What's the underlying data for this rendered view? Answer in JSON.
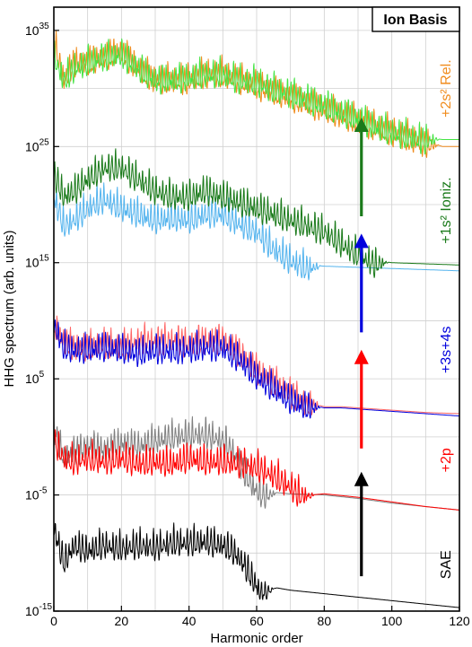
{
  "chart_data": {
    "type": "line",
    "title": "Ion Basis",
    "xlabel": "Harmonic order",
    "ylabel": "HHG spectrum (arb. units)",
    "xlim": [
      0,
      120
    ],
    "ylim_exponent": [
      -15,
      37
    ],
    "log_y": true,
    "grid": true,
    "x_ticks": [
      "0",
      "20",
      "40",
      "60",
      "80",
      "100",
      "120"
    ],
    "y_ticks": [
      {
        "base": "10",
        "exp": "35",
        "value": 35
      },
      {
        "base": "10",
        "exp": "25",
        "value": 25
      },
      {
        "base": "10",
        "exp": "15",
        "value": 15
      },
      {
        "base": "10",
        "exp": "5",
        "value": 5
      },
      {
        "base": "10",
        "exp": "-5",
        "value": -5
      },
      {
        "base": "10",
        "exp": "-15",
        "value": -15
      }
    ],
    "panel_labels": [
      {
        "text": "SAE",
        "color": "#000000",
        "y": -11
      },
      {
        "text": "+2p",
        "color": "#ff0000",
        "y": -2
      },
      {
        "text": "+3s+4s",
        "color": "#0000dd",
        "y": 7.5
      },
      {
        "text": "+1s² Ioniz.",
        "color": "#1a7a1a",
        "y": 19.5
      },
      {
        "text": "+2s² Rel.",
        "color": "#f08c1e",
        "y": 30
      }
    ],
    "arrows": [
      {
        "x": 91,
        "from": -12,
        "to": -3,
        "color": "#000000"
      },
      {
        "x": 91,
        "from": -1,
        "to": 7.5,
        "color": "#ff0000"
      },
      {
        "x": 91,
        "from": 9,
        "to": 17.5,
        "color": "#0000dd"
      },
      {
        "x": 91,
        "from": 19,
        "to": 27.5,
        "color": "#1a7a1a"
      }
    ],
    "series": [
      {
        "color": "#000000",
        "values": [
          [
            0,
            -7.5
          ],
          [
            3,
            -10.5
          ],
          [
            6,
            -9
          ],
          [
            10,
            -9.5
          ],
          [
            15,
            -9
          ],
          [
            20,
            -9.3
          ],
          [
            25,
            -9
          ],
          [
            30,
            -9.2
          ],
          [
            35,
            -8.8
          ],
          [
            40,
            -8.8
          ],
          [
            45,
            -8.7
          ],
          [
            50,
            -9
          ],
          [
            53,
            -9.5
          ],
          [
            56,
            -10.5
          ],
          [
            59,
            -12
          ],
          [
            61,
            -13
          ],
          [
            63,
            -13.2
          ],
          [
            66,
            -13
          ],
          [
            70,
            -13.2
          ],
          [
            80,
            -13.5
          ],
          [
            90,
            -13.8
          ],
          [
            100,
            -14.1
          ],
          [
            110,
            -14.4
          ],
          [
            120,
            -14.7
          ]
        ]
      },
      {
        "color": "#808080",
        "values": [
          [
            0,
            1
          ],
          [
            3,
            -1.5
          ],
          [
            6,
            -1
          ],
          [
            10,
            -0.5
          ],
          [
            15,
            -0.8
          ],
          [
            20,
            -0.2
          ],
          [
            25,
            -0.5
          ],
          [
            30,
            0
          ],
          [
            35,
            0.3
          ],
          [
            40,
            0.5
          ],
          [
            45,
            0.5
          ],
          [
            50,
            0
          ],
          [
            53,
            -1
          ],
          [
            56,
            -2.5
          ],
          [
            59,
            -4
          ],
          [
            62,
            -4.8
          ],
          [
            66,
            -4.8
          ],
          [
            70,
            -4.9
          ],
          [
            80,
            -5
          ],
          [
            90,
            -5.3
          ],
          [
            100,
            -5.7
          ],
          [
            110,
            -6
          ],
          [
            120,
            -6.3
          ]
        ]
      },
      {
        "color": "#ff0000",
        "values": [
          [
            0,
            0
          ],
          [
            3,
            -1.5
          ],
          [
            6,
            -1.8
          ],
          [
            10,
            -1.5
          ],
          [
            15,
            -1.8
          ],
          [
            20,
            -1.5
          ],
          [
            25,
            -2
          ],
          [
            30,
            -1.8
          ],
          [
            35,
            -2
          ],
          [
            40,
            -1.5
          ],
          [
            45,
            -1.8
          ],
          [
            50,
            -1.8
          ],
          [
            55,
            -2
          ],
          [
            60,
            -2.3
          ],
          [
            65,
            -3
          ],
          [
            70,
            -4
          ],
          [
            73,
            -4.7
          ],
          [
            76,
            -5
          ],
          [
            80,
            -4.9
          ],
          [
            90,
            -5.2
          ],
          [
            100,
            -5.6
          ],
          [
            110,
            -6
          ],
          [
            120,
            -6.3
          ]
        ]
      },
      {
        "color": "#ff6464",
        "values": [
          [
            0,
            10
          ],
          [
            3,
            8.5
          ],
          [
            6,
            8
          ],
          [
            10,
            8
          ],
          [
            15,
            8.3
          ],
          [
            20,
            8
          ],
          [
            25,
            8.5
          ],
          [
            30,
            8.5
          ],
          [
            35,
            8.6
          ],
          [
            40,
            8.3
          ],
          [
            45,
            8.6
          ],
          [
            50,
            8.6
          ],
          [
            55,
            7.5
          ],
          [
            60,
            6
          ],
          [
            65,
            5
          ],
          [
            70,
            4
          ],
          [
            75,
            3
          ],
          [
            80,
            2.6
          ],
          [
            85,
            2.6
          ],
          [
            90,
            2.5
          ],
          [
            100,
            2.3
          ],
          [
            110,
            2.1
          ],
          [
            120,
            2
          ]
        ]
      },
      {
        "color": "#0000dd",
        "values": [
          [
            0,
            10
          ],
          [
            3,
            8
          ],
          [
            6,
            7.8
          ],
          [
            10,
            7.8
          ],
          [
            15,
            8
          ],
          [
            20,
            7.8
          ],
          [
            25,
            7.5
          ],
          [
            30,
            7.8
          ],
          [
            35,
            7.7
          ],
          [
            40,
            7.8
          ],
          [
            45,
            8
          ],
          [
            50,
            8
          ],
          [
            55,
            7
          ],
          [
            60,
            5.5
          ],
          [
            65,
            4.5
          ],
          [
            70,
            3.5
          ],
          [
            75,
            2.8
          ],
          [
            80,
            2.5
          ],
          [
            85,
            2.5
          ],
          [
            90,
            2.4
          ],
          [
            100,
            2.2
          ],
          [
            110,
            2
          ],
          [
            120,
            1.8
          ]
        ]
      },
      {
        "color": "#55b4ee",
        "values": [
          [
            0,
            21
          ],
          [
            3,
            18.5
          ],
          [
            6,
            19
          ],
          [
            10,
            20
          ],
          [
            15,
            20.8
          ],
          [
            20,
            20
          ],
          [
            25,
            19.5
          ],
          [
            30,
            19
          ],
          [
            35,
            19.2
          ],
          [
            40,
            19
          ],
          [
            45,
            19.5
          ],
          [
            50,
            19.5
          ],
          [
            53,
            19
          ],
          [
            56,
            18.5
          ],
          [
            60,
            18
          ],
          [
            65,
            16.5
          ],
          [
            70,
            15.5
          ],
          [
            75,
            14.8
          ],
          [
            80,
            14.7
          ],
          [
            90,
            14.6
          ],
          [
            100,
            14.5
          ],
          [
            110,
            14.4
          ],
          [
            120,
            14.3
          ]
        ]
      },
      {
        "color": "#1a7a1a",
        "values": [
          [
            0,
            23
          ],
          [
            3,
            21
          ],
          [
            6,
            21.5
          ],
          [
            10,
            22.5
          ],
          [
            15,
            23.5
          ],
          [
            20,
            23.5
          ],
          [
            25,
            22.5
          ],
          [
            30,
            21.5
          ],
          [
            35,
            21
          ],
          [
            40,
            21
          ],
          [
            45,
            21.5
          ],
          [
            50,
            21
          ],
          [
            55,
            20.5
          ],
          [
            60,
            20
          ],
          [
            65,
            19.5
          ],
          [
            70,
            19
          ],
          [
            75,
            18.5
          ],
          [
            80,
            18
          ],
          [
            85,
            17
          ],
          [
            90,
            16
          ],
          [
            95,
            15.2
          ],
          [
            100,
            15
          ],
          [
            110,
            14.9
          ],
          [
            120,
            14.8
          ]
        ]
      },
      {
        "color": "#f08c1e",
        "values": [
          [
            0,
            34.5
          ],
          [
            3,
            31
          ],
          [
            6,
            32.5
          ],
          [
            10,
            32.5
          ],
          [
            15,
            33
          ],
          [
            20,
            33.5
          ],
          [
            25,
            32
          ],
          [
            30,
            31
          ],
          [
            35,
            31
          ],
          [
            40,
            31
          ],
          [
            45,
            31.5
          ],
          [
            50,
            31.5
          ],
          [
            55,
            31
          ],
          [
            60,
            30.5
          ],
          [
            65,
            30
          ],
          [
            70,
            29.5
          ],
          [
            75,
            29
          ],
          [
            80,
            28.5
          ],
          [
            85,
            28
          ],
          [
            90,
            27.5
          ],
          [
            95,
            27
          ],
          [
            100,
            26.5
          ],
          [
            110,
            25.5
          ],
          [
            115,
            25
          ],
          [
            120,
            25
          ]
        ]
      },
      {
        "color": "#44e444",
        "values": [
          [
            0,
            33
          ],
          [
            3,
            31
          ],
          [
            6,
            32
          ],
          [
            10,
            32.5
          ],
          [
            15,
            33
          ],
          [
            20,
            33.2
          ],
          [
            25,
            32
          ],
          [
            30,
            31
          ],
          [
            35,
            31
          ],
          [
            40,
            31.2
          ],
          [
            45,
            31.5
          ],
          [
            50,
            31.5
          ],
          [
            55,
            31
          ],
          [
            60,
            30.8
          ],
          [
            65,
            30.2
          ],
          [
            70,
            29.8
          ],
          [
            75,
            29.3
          ],
          [
            80,
            28.8
          ],
          [
            85,
            28.2
          ],
          [
            90,
            27.7
          ],
          [
            95,
            27
          ],
          [
            100,
            26.5
          ],
          [
            110,
            25.8
          ],
          [
            115,
            25.6
          ],
          [
            120,
            25.6
          ]
        ]
      }
    ]
  }
}
